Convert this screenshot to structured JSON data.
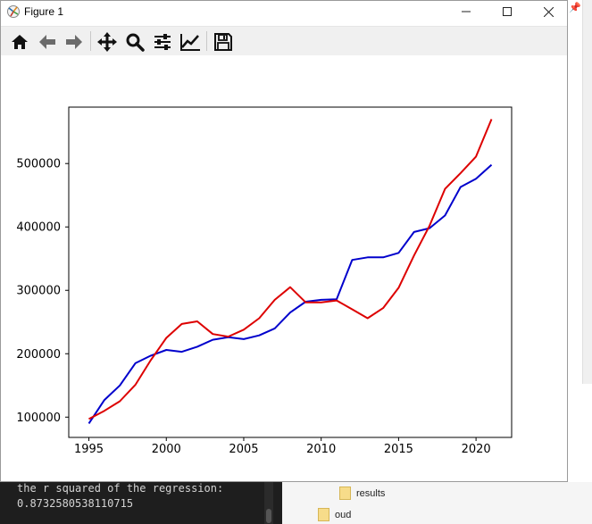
{
  "window": {
    "title": "Figure 1",
    "controls": [
      "minimize",
      "maximize",
      "close"
    ],
    "app_icon": "matplotlib-figure-icon"
  },
  "toolbar": {
    "buttons": [
      {
        "name": "home-icon",
        "tooltip": "Reset original view"
      },
      {
        "name": "back-arrow-icon",
        "tooltip": "Back to previous view"
      },
      {
        "name": "forward-arrow-icon",
        "tooltip": "Forward to next view"
      },
      {
        "name": "pan-move-icon",
        "tooltip": "Pan"
      },
      {
        "name": "zoom-magnifier-icon",
        "tooltip": "Zoom to rectangle"
      },
      {
        "name": "configure-subplots-icon",
        "tooltip": "Configure subplots"
      },
      {
        "name": "edit-axis-icon",
        "tooltip": "Edit axis, curve and image parameters"
      },
      {
        "name": "save-floppy-icon",
        "tooltip": "Save the figure"
      }
    ]
  },
  "chart_data": {
    "type": "line",
    "title": "",
    "xlabel": "",
    "ylabel": "",
    "xlim": [
      1993.7,
      2022.3
    ],
    "ylim": [
      68000,
      589000
    ],
    "xticks": [
      1995,
      2000,
      2005,
      2010,
      2015,
      2020
    ],
    "xtick_labels": [
      "1995",
      "2000",
      "2005",
      "2010",
      "2015",
      "2020"
    ],
    "yticks": [
      100000,
      200000,
      300000,
      400000,
      500000
    ],
    "ytick_labels": [
      "100000",
      "200000",
      "300000",
      "400000",
      "500000"
    ],
    "grid": false,
    "legend": null,
    "x": [
      1995,
      1996,
      1997,
      1998,
      1999,
      2000,
      2001,
      2002,
      2003,
      2004,
      2005,
      2006,
      2007,
      2008,
      2009,
      2010,
      2011,
      2012,
      2013,
      2014,
      2015,
      2016,
      2017,
      2018,
      2019,
      2020,
      2021
    ],
    "series": [
      {
        "color": "#0000cc",
        "values": [
          90000,
          127000,
          150000,
          185000,
          197000,
          206000,
          203000,
          211000,
          222000,
          226000,
          223000,
          229000,
          240000,
          265000,
          282000,
          285000,
          286000,
          348000,
          352000,
          352000,
          359000,
          392000,
          398000,
          418000,
          463000,
          476000,
          498000
        ]
      },
      {
        "color": "#dd0000",
        "values": [
          97000,
          110000,
          125000,
          151000,
          190000,
          225000,
          247000,
          251000,
          231000,
          227000,
          238000,
          256000,
          285000,
          305000,
          281000,
          281000,
          284000,
          270000,
          256000,
          272000,
          304000,
          355000,
          402000,
          460000,
          485000,
          511000,
          570000
        ]
      }
    ]
  },
  "terminal": {
    "line1": "the r squared of the regression:",
    "line2": "0.8732580538110715"
  },
  "explorer": {
    "items": [
      {
        "label": "results"
      },
      {
        "label": "oud"
      }
    ]
  }
}
